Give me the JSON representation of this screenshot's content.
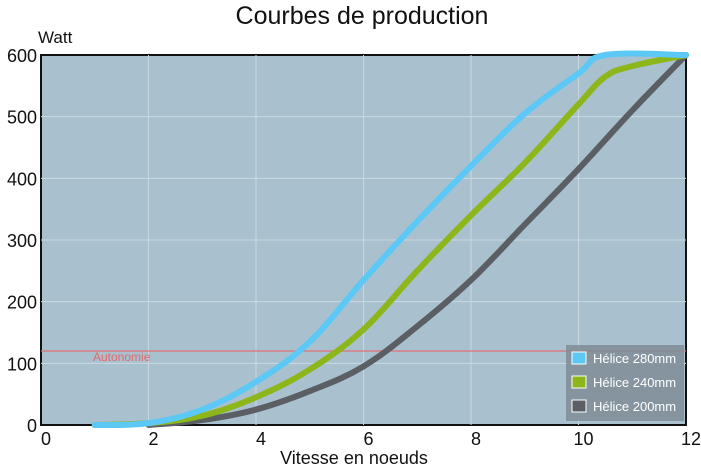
{
  "chart_data": {
    "type": "line",
    "title": "Courbes de production",
    "ylabel": "Watt",
    "xlabel": "Vitesse en noeuds",
    "xlim": [
      0,
      12
    ],
    "ylim": [
      0,
      600
    ],
    "x_ticks": [
      "0",
      "2",
      "4",
      "6",
      "8",
      "10",
      "12"
    ],
    "y_ticks": [
      "0",
      "100",
      "200",
      "300",
      "400",
      "500",
      "600"
    ],
    "grid": true,
    "legend_position": "bottom-right",
    "background_color": "#a9c1cf",
    "annotation": {
      "label": "Autonomie",
      "y": 120,
      "color": "#e07070"
    },
    "series": [
      {
        "name": "Hélice 280mm",
        "color": "#5bc8f5",
        "points": [
          [
            1,
            0
          ],
          [
            2,
            3
          ],
          [
            3,
            25
          ],
          [
            4,
            70
          ],
          [
            5,
            135
          ],
          [
            6,
            235
          ],
          [
            7,
            330
          ],
          [
            8,
            420
          ],
          [
            9,
            505
          ],
          [
            10,
            570
          ],
          [
            10.5,
            600
          ],
          [
            12,
            600
          ]
        ]
      },
      {
        "name": "Hélice 240mm",
        "color": "#8db61a",
        "points": [
          [
            1,
            0
          ],
          [
            2,
            3
          ],
          [
            3,
            15
          ],
          [
            4,
            45
          ],
          [
            5,
            90
          ],
          [
            6,
            155
          ],
          [
            7,
            250
          ],
          [
            8,
            340
          ],
          [
            9,
            425
          ],
          [
            10,
            520
          ],
          [
            10.5,
            565
          ],
          [
            11,
            582
          ],
          [
            12,
            600
          ]
        ]
      },
      {
        "name": "Hélice 200mm",
        "color": "#5b5e63",
        "points": [
          [
            2,
            0
          ],
          [
            3,
            8
          ],
          [
            4,
            25
          ],
          [
            5,
            55
          ],
          [
            6,
            95
          ],
          [
            7,
            160
          ],
          [
            8,
            235
          ],
          [
            9,
            325
          ],
          [
            10,
            415
          ],
          [
            11,
            510
          ],
          [
            12,
            600
          ]
        ]
      }
    ]
  }
}
